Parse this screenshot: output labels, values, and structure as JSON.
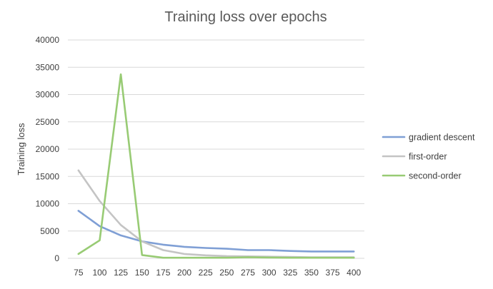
{
  "chart_data": {
    "type": "line",
    "title": "Training loss over epochs",
    "xlabel": "",
    "ylabel": "Training loss",
    "categories": [
      "75",
      "100",
      "125",
      "150",
      "175",
      "200",
      "225",
      "250",
      "275",
      "300",
      "325",
      "350",
      "375",
      "400"
    ],
    "ylim": [
      0,
      40000
    ],
    "yticks": [
      0,
      5000,
      10000,
      15000,
      20000,
      25000,
      30000,
      35000,
      40000
    ],
    "grid": true,
    "legend": "right",
    "series": [
      {
        "name": "gradient descent",
        "color": "#7f9fd5",
        "values": [
          8700,
          5900,
          4200,
          3100,
          2500,
          2100,
          1900,
          1750,
          1500,
          1500,
          1350,
          1250,
          1250,
          1250
        ]
      },
      {
        "name": "first-order",
        "color": "#c4c4c4",
        "values": [
          16100,
          10500,
          6100,
          3100,
          1500,
          800,
          550,
          400,
          350,
          300,
          250,
          200,
          200,
          200
        ]
      },
      {
        "name": "second-order",
        "color": "#98cb74",
        "values": [
          800,
          3300,
          33700,
          600,
          100,
          100,
          100,
          100,
          200,
          150,
          100,
          100,
          100,
          100
        ]
      }
    ]
  }
}
